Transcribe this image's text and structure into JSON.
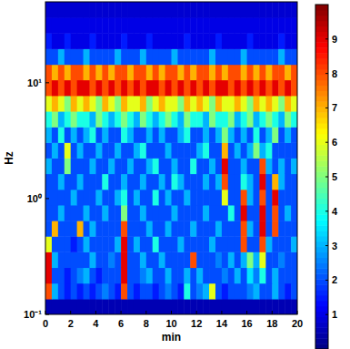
{
  "chart_data": {
    "type": "heatmap",
    "x_label": "min",
    "y_label": "Hz",
    "log": "y",
    "xlim": [
      0,
      20
    ],
    "ylim": [
      0.1,
      50
    ],
    "xticks": [
      0,
      2,
      4,
      6,
      8,
      10,
      12,
      14,
      16,
      18,
      20
    ],
    "yticks": [
      {
        "value": 0.1,
        "label": "10⁻¹"
      },
      {
        "value": 1,
        "label": "10⁰"
      },
      {
        "value": 10,
        "label": "10¹"
      }
    ],
    "x_edges": [
      0,
      0.5,
      1,
      1.5,
      2,
      2.5,
      3,
      3.5,
      4,
      4.5,
      5,
      5.5,
      6,
      6.5,
      7,
      7.5,
      8,
      8.5,
      9,
      9.5,
      10,
      10.5,
      11,
      11.5,
      12,
      12.5,
      13,
      13.5,
      14,
      14.5,
      15,
      15.5,
      16,
      16.5,
      17,
      17.5,
      18,
      18.5,
      19,
      19.5,
      20
    ],
    "y_edges": [
      0.1,
      0.136,
      0.186,
      0.254,
      0.347,
      0.473,
      0.645,
      0.88,
      1.2,
      1.64,
      2.24,
      3.05,
      4.16,
      5.68,
      7.75,
      10.6,
      14.4,
      19.7,
      26.9,
      36.7,
      50
    ],
    "cells": [
      [
        0.5,
        0.5,
        0.5,
        0.5,
        0.5,
        0.5,
        0.5,
        0.5,
        0.5,
        0.5,
        0.5,
        0.5,
        0.5,
        0.5,
        0.5,
        0.5,
        0.5,
        0.5,
        0.5,
        0.5,
        0.5,
        0.5,
        0.5,
        0.5,
        0.5,
        0.5,
        0.5,
        0.5,
        0.5,
        0.5,
        0.5,
        0.5,
        0.5,
        0.5,
        0.5,
        0.5,
        0.5,
        0.5,
        0.5,
        0.5
      ],
      [
        8,
        3,
        2,
        1.5,
        2,
        1.5,
        2,
        1.5,
        2,
        2.5,
        2,
        1.5,
        8,
        2,
        1.5,
        2,
        2,
        1.5,
        2,
        2.5,
        2,
        1.5,
        4,
        2,
        2.5,
        3,
        6,
        2,
        1.5,
        2,
        2,
        2,
        2.5,
        3,
        2,
        2,
        3,
        2,
        1.5,
        2
      ],
      [
        9,
        2,
        2,
        1.5,
        2,
        2.5,
        3,
        2,
        1.5,
        2,
        2,
        2,
        9,
        2,
        2,
        2.5,
        3,
        2,
        2,
        3,
        2,
        2,
        3,
        2,
        3,
        2,
        2,
        2,
        2.5,
        2,
        3,
        2,
        3.5,
        2.5,
        4,
        2,
        3,
        2,
        2,
        2
      ],
      [
        9,
        3,
        2,
        2,
        2,
        2,
        2,
        3,
        2,
        2,
        2.5,
        2,
        9,
        2,
        2,
        3,
        2,
        2,
        3,
        2,
        2,
        2,
        2,
        8,
        2,
        2,
        2,
        2.5,
        2,
        3,
        2,
        3,
        5,
        3,
        6,
        2,
        2,
        2.5,
        2,
        2
      ],
      [
        6,
        2,
        2,
        2,
        1.5,
        2,
        3,
        2,
        2,
        2,
        2,
        3,
        9,
        2,
        3,
        2,
        2,
        4,
        2,
        2,
        2,
        3,
        2,
        2,
        2,
        2,
        3,
        2,
        2,
        2,
        2,
        8,
        2,
        2,
        8,
        3,
        2,
        2,
        2,
        3
      ],
      [
        2,
        7,
        2,
        2,
        2,
        7,
        2,
        3,
        2,
        2,
        2,
        2,
        8,
        2,
        2,
        2,
        3,
        2,
        2,
        3,
        2,
        2,
        2,
        3,
        2,
        2,
        2,
        3,
        2,
        2,
        2,
        8,
        3,
        2,
        9,
        2,
        8,
        2,
        2,
        2
      ],
      [
        2,
        2,
        3,
        2,
        2,
        2,
        3,
        2,
        2,
        3,
        2,
        2,
        5,
        2,
        2,
        3,
        2,
        2,
        2,
        2,
        3,
        2,
        2,
        2,
        2,
        3,
        2,
        2,
        2,
        4,
        2,
        9,
        2,
        2,
        9,
        2,
        8,
        2,
        3,
        2
      ],
      [
        2,
        2,
        2,
        2,
        3,
        2,
        2,
        2,
        3,
        2,
        2,
        3,
        4,
        2,
        3,
        2,
        2,
        4,
        2,
        3,
        2,
        2,
        3,
        2,
        2,
        2,
        2,
        2,
        6,
        2,
        2,
        8,
        3,
        2,
        8,
        2,
        9,
        2,
        2,
        2
      ],
      [
        2,
        2,
        3,
        2,
        2,
        3,
        2,
        2,
        2,
        4,
        2,
        2,
        3,
        2,
        2,
        3,
        2,
        2,
        3,
        2,
        4,
        3,
        2,
        2,
        2,
        3,
        2,
        3,
        8,
        2,
        2,
        4,
        3,
        2,
        9,
        2,
        7,
        3,
        2,
        2
      ],
      [
        3,
        2,
        2,
        5,
        2,
        2,
        2,
        3,
        2,
        2,
        3,
        2,
        2,
        3,
        2,
        2,
        3,
        4,
        2,
        2,
        3,
        2,
        2,
        4,
        2,
        2,
        3,
        2,
        9,
        2,
        2,
        3,
        2,
        2,
        8,
        3,
        2,
        3,
        2,
        3
      ],
      [
        2,
        3,
        2,
        6,
        2,
        3,
        2,
        2,
        3,
        2,
        2,
        3,
        2,
        2,
        3,
        4,
        2,
        2,
        2,
        3,
        2,
        2,
        2,
        2,
        3,
        4,
        2,
        2,
        7,
        2,
        3,
        2,
        3,
        5,
        3,
        4,
        2,
        2,
        2,
        2
      ],
      [
        3,
        2,
        4,
        2,
        3,
        2,
        3,
        4,
        2,
        3,
        2,
        2,
        4,
        3,
        2,
        2,
        3,
        2,
        3,
        2,
        2,
        3,
        4,
        2,
        2,
        3,
        2,
        3,
        5,
        3,
        2,
        3,
        2,
        4,
        2,
        3,
        5,
        2,
        3,
        2
      ],
      [
        4,
        5,
        3,
        4,
        5,
        4,
        4,
        3,
        5,
        4,
        3,
        4,
        5,
        4,
        3,
        5,
        4,
        3,
        4,
        5,
        4,
        3,
        5,
        4,
        4,
        3,
        5,
        4,
        4,
        5,
        3,
        4,
        5,
        3,
        4,
        5,
        4,
        3,
        5,
        4
      ],
      [
        6,
        7,
        6,
        5,
        7,
        6,
        7,
        6,
        5,
        7,
        6,
        5,
        7,
        6,
        6,
        7,
        5,
        6,
        7,
        6,
        6,
        5,
        7,
        6,
        7,
        6,
        5,
        7,
        6,
        6,
        7,
        6,
        5,
        7,
        6,
        7,
        6,
        5,
        7,
        6
      ],
      [
        8,
        9,
        8,
        9,
        8,
        9,
        9,
        8,
        9,
        8,
        9,
        8,
        9,
        8,
        9,
        8,
        9,
        9,
        8,
        9,
        8,
        9,
        8,
        9,
        8,
        9,
        8,
        9,
        9,
        8,
        9,
        8,
        9,
        8,
        9,
        8,
        9,
        8,
        9,
        8
      ],
      [
        8,
        7,
        8,
        7,
        8,
        8,
        7,
        8,
        7,
        8,
        7,
        8,
        8,
        7,
        8,
        8,
        7,
        8,
        7,
        8,
        8,
        7,
        8,
        7,
        8,
        8,
        7,
        8,
        7,
        8,
        8,
        7,
        8,
        7,
        8,
        7,
        8,
        8,
        7,
        8
      ],
      [
        2,
        2,
        3,
        2,
        2,
        2,
        3,
        2,
        2,
        2,
        2,
        3,
        2,
        2,
        2,
        3,
        2,
        2,
        2,
        2,
        3,
        2,
        2,
        2,
        2,
        2,
        3,
        2,
        2,
        2,
        2,
        3,
        2,
        2,
        2,
        2,
        2,
        3,
        2,
        2
      ],
      [
        1.5,
        1,
        1,
        1.5,
        1,
        1,
        1,
        1.5,
        1,
        1,
        1,
        1,
        1.5,
        1,
        1,
        1,
        1.5,
        1,
        1,
        1,
        1,
        1,
        1.5,
        1,
        1,
        1,
        1,
        1.5,
        1,
        1,
        1,
        1,
        1.5,
        1,
        1,
        1,
        1,
        1.5,
        1,
        1
      ],
      [
        1,
        1,
        1,
        1,
        1,
        1,
        1,
        1,
        1,
        1,
        1,
        1,
        1,
        1,
        1,
        1,
        1,
        1,
        1,
        1,
        1,
        1,
        1,
        1,
        1,
        1,
        1,
        1,
        1,
        1,
        1,
        1,
        1,
        1,
        1,
        1,
        1,
        1,
        1,
        1
      ],
      [
        0.8,
        0.8,
        0.8,
        0.8,
        0.8,
        0.8,
        0.8,
        0.8,
        0.8,
        0.8,
        0.8,
        0.8,
        0.8,
        0.8,
        0.8,
        0.8,
        0.8,
        0.8,
        0.8,
        0.8,
        0.8,
        0.8,
        0.8,
        0.8,
        0.8,
        0.8,
        0.8,
        0.8,
        0.8,
        0.8,
        0.8,
        0.8,
        0.8,
        0.8,
        0.8,
        0.8,
        0.8,
        0.8,
        0.8,
        0.8
      ]
    ],
    "colorbar": {
      "range": [
        0,
        10
      ],
      "ticks": [
        1,
        2,
        3,
        4,
        5,
        6,
        7,
        8,
        9
      ]
    }
  }
}
